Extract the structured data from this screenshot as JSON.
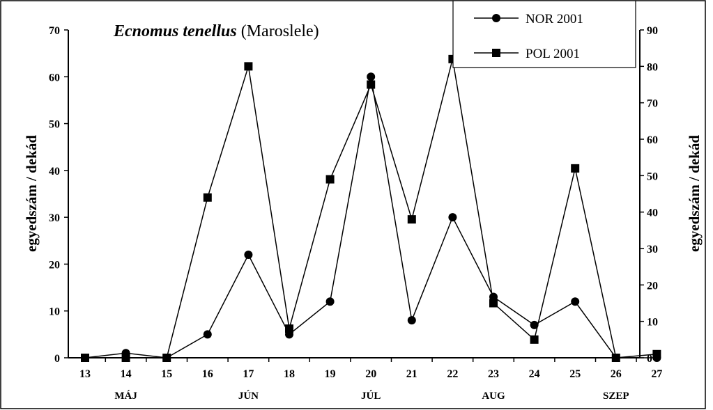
{
  "chart_data": {
    "type": "line",
    "title_species": "Ecnomus tenellus",
    "title_location": " (Maroslele)",
    "x": [
      13,
      14,
      15,
      16,
      17,
      18,
      19,
      20,
      21,
      22,
      23,
      24,
      25,
      26,
      27
    ],
    "x_ticks": [
      "13",
      "14",
      "15",
      "16",
      "17",
      "18",
      "19",
      "20",
      "21",
      "22",
      "23",
      "24",
      "25",
      "26",
      "27"
    ],
    "months": [
      {
        "label": "MÁJ",
        "x": 14
      },
      {
        "label": "JÚN",
        "x": 17
      },
      {
        "label": "JÚL",
        "x": 20
      },
      {
        "label": "AUG",
        "x": 23
      },
      {
        "label": "SZEP",
        "x": 26
      }
    ],
    "ylabel_left": "egyedszám / dekád",
    "ylabel_right": "egyedszám / dekád",
    "ylim_left": [
      0,
      70
    ],
    "ylim_right": [
      0,
      90
    ],
    "yticks_left": [
      "0",
      "10",
      "20",
      "30",
      "40",
      "50",
      "60",
      "70"
    ],
    "yticks_right": [
      "0",
      "10",
      "20",
      "30",
      "40",
      "50",
      "60",
      "70",
      "80",
      "90"
    ],
    "grid": false,
    "legend_position": "top-right",
    "series": [
      {
        "name": "NOR 2001",
        "marker": "circle",
        "axis": "left",
        "values": [
          0,
          1,
          0,
          5,
          22,
          5,
          12,
          60,
          8,
          30,
          13,
          7,
          12,
          0,
          0
        ]
      },
      {
        "name": "POL 2001",
        "marker": "square",
        "axis": "right",
        "values": [
          0,
          0,
          0,
          44,
          80,
          8,
          49,
          75,
          38,
          82,
          15,
          5,
          52,
          0,
          1
        ]
      }
    ],
    "color": "#000000"
  }
}
